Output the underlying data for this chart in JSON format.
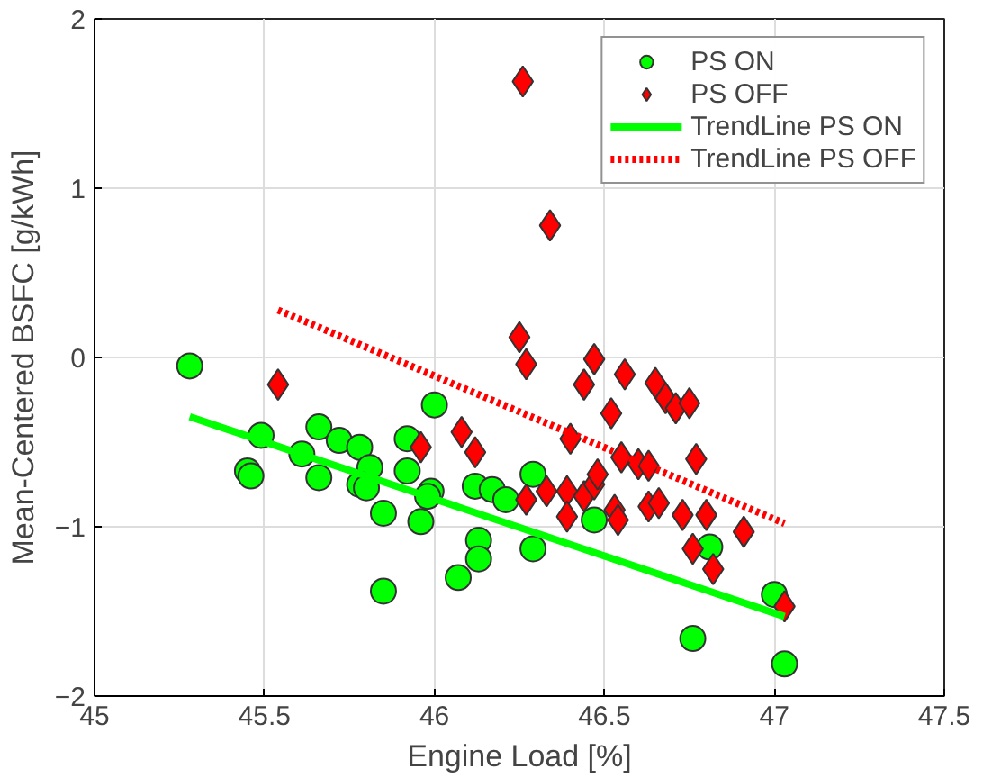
{
  "chart_data": {
    "type": "scatter",
    "xlabel": "Engine Load [%]",
    "ylabel": "Mean-Centered BSFC [g/kWh]",
    "xlim": [
      45,
      47.5
    ],
    "ylim": [
      -2,
      2
    ],
    "xticks": [
      45,
      45.5,
      46,
      46.5,
      47,
      47.5
    ],
    "yticks": [
      -2,
      -1,
      0,
      1,
      2
    ],
    "grid": true,
    "legend": "top right",
    "series": [
      {
        "name": "PS ON",
        "marker": "circle",
        "color": "#00ff00",
        "x": [
          45.28,
          45.49,
          45.45,
          45.46,
          45.61,
          45.66,
          45.66,
          45.72,
          45.78,
          45.81,
          45.78,
          45.8,
          45.85,
          45.85,
          45.92,
          45.92,
          45.96,
          45.99,
          45.98,
          46.0,
          46.07,
          46.12,
          46.13,
          46.13,
          46.17,
          46.21,
          46.29,
          46.29,
          46.47,
          46.81,
          46.76,
          47.0,
          47.03
        ],
        "values": [
          -0.05,
          -0.46,
          -0.67,
          -0.7,
          -0.57,
          -0.41,
          -0.71,
          -0.49,
          -0.53,
          -0.65,
          -0.75,
          -0.77,
          -0.92,
          -1.38,
          -0.67,
          -0.48,
          -0.97,
          -0.79,
          -0.82,
          -0.28,
          -1.3,
          -0.76,
          -1.08,
          -1.19,
          -0.78,
          -0.84,
          -1.13,
          -0.69,
          -0.96,
          -1.12,
          -1.66,
          -1.4,
          -1.81
        ]
      },
      {
        "name": "PS OFF",
        "marker": "diamond",
        "color": "#ff0000",
        "x": [
          45.54,
          45.96,
          46.08,
          46.12,
          46.25,
          46.27,
          46.27,
          46.26,
          46.34,
          46.33,
          46.39,
          46.39,
          46.44,
          46.47,
          46.48,
          46.44,
          46.47,
          46.4,
          46.56,
          46.52,
          46.55,
          46.6,
          46.63,
          46.53,
          46.54,
          46.63,
          46.66,
          46.65,
          46.68,
          46.71,
          46.75,
          46.77,
          46.73,
          46.8,
          46.76,
          46.82,
          46.91,
          47.03
        ],
        "values": [
          -0.16,
          -0.53,
          -0.44,
          -0.56,
          0.12,
          -0.04,
          -0.84,
          1.63,
          0.78,
          -0.79,
          -0.79,
          -0.94,
          -0.82,
          -0.75,
          -0.69,
          -0.16,
          -0.01,
          -0.48,
          -0.1,
          -0.33,
          -0.59,
          -0.63,
          -0.64,
          -0.9,
          -0.96,
          -0.88,
          -0.86,
          -0.15,
          -0.24,
          -0.3,
          -0.27,
          -0.6,
          -0.93,
          -0.93,
          -1.13,
          -1.25,
          -1.03,
          -1.47
        ]
      },
      {
        "name": "TrendLine PS ON",
        "type": "line",
        "line_style": "solid",
        "color": "#00ff00",
        "x": [
          45.28,
          47.03
        ],
        "values": [
          -0.35,
          -1.53
        ]
      },
      {
        "name": "TrendLine PS OFF",
        "type": "line",
        "line_style": "dotted",
        "color": "#ff0000",
        "x": [
          45.54,
          47.03
        ],
        "values": [
          0.28,
          -0.98
        ]
      }
    ]
  }
}
